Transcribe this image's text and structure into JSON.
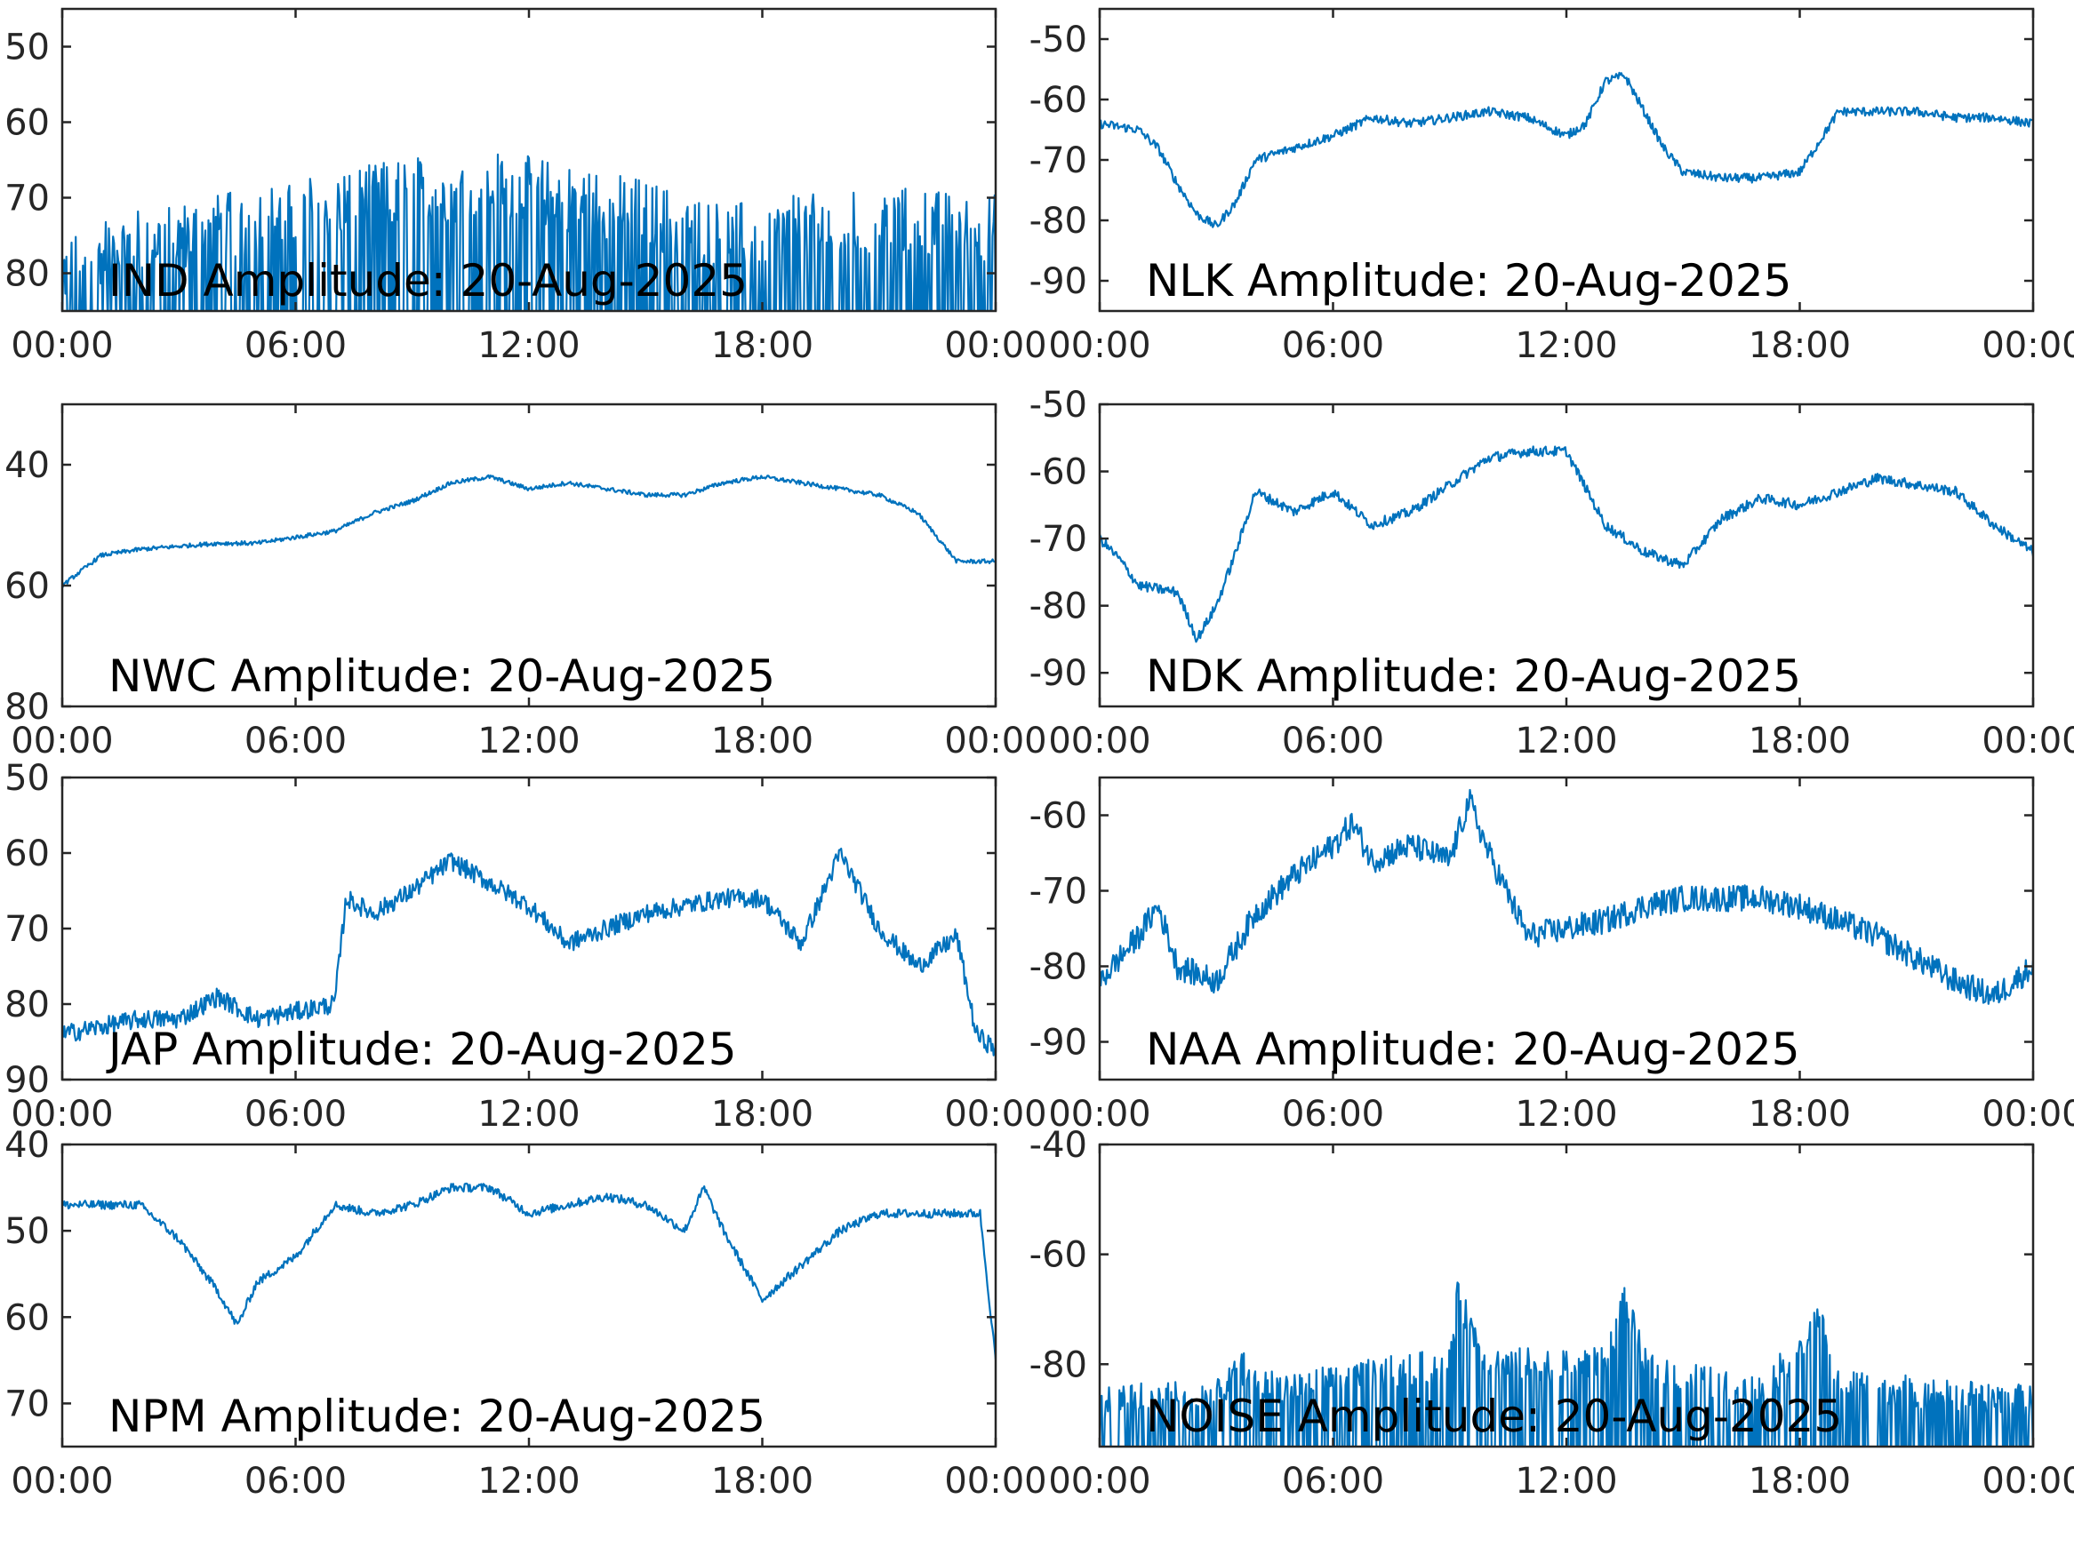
{
  "style": {
    "line_color": "#0072BD",
    "axis_color": "#262626",
    "background": "#ffffff"
  },
  "chart_data": [
    {
      "type": "line",
      "title": "IND Amplitude: 20-Aug-2025",
      "xticks": [
        "00:00",
        "06:00",
        "12:00",
        "18:00",
        "00:00"
      ],
      "xlim": [
        0,
        24
      ],
      "yticks": [
        "50",
        "60",
        "70",
        "80"
      ],
      "ytick_values": [
        -50,
        -60,
        -70,
        -80
      ],
      "ylim": [
        -85,
        -45
      ],
      "series": [
        {
          "x": [
            0,
            1,
            2,
            3,
            4,
            5,
            6,
            7,
            8,
            9,
            10,
            11,
            12,
            13,
            14,
            15,
            16,
            17,
            18,
            19,
            20,
            21,
            22,
            23,
            24
          ],
          "y": [
            -80,
            -77,
            -76,
            -75,
            -74,
            -73,
            -72,
            -71,
            -70,
            -69,
            -69,
            -68,
            -69,
            -70,
            -71,
            -72,
            -74,
            -75,
            -75,
            -74,
            -74,
            -73,
            -73,
            -74,
            -74
          ],
          "noise": 9,
          "floor": true
        }
      ]
    },
    {
      "type": "line",
      "title": "NLK Amplitude: 20-Aug-2025",
      "xticks": [
        "00:00",
        "06:00",
        "12:00",
        "18:00",
        "00:00"
      ],
      "xlim": [
        0,
        24
      ],
      "yticks": [
        "-50",
        "-60",
        "-70",
        "-80",
        "-90"
      ],
      "ytick_values": [
        -50,
        -60,
        -70,
        -80,
        -90
      ],
      "ylim": [
        -95,
        -45
      ],
      "series": [
        {
          "x": [
            0,
            1,
            1.5,
            2,
            2.5,
            3,
            3.5,
            4,
            5,
            6,
            7,
            8,
            9,
            10,
            11,
            12,
            12.5,
            13,
            13.5,
            14,
            14.5,
            15,
            16,
            17,
            18,
            19,
            20,
            21,
            22,
            23,
            24
          ],
          "y": [
            -64,
            -65,
            -68,
            -74,
            -79,
            -81,
            -77,
            -70,
            -68,
            -66,
            -63,
            -64,
            -63,
            -62,
            -63,
            -66,
            -64,
            -57,
            -56,
            -62,
            -68,
            -72,
            -73,
            -73,
            -72,
            -62,
            -62,
            -62,
            -63,
            -63,
            -64
          ],
          "noise": 1.5
        }
      ]
    },
    {
      "type": "line",
      "title": "NWC Amplitude: 20-Aug-2025",
      "xticks": [
        "00:00",
        "06:00",
        "12:00",
        "18:00",
        "00:00"
      ],
      "xlim": [
        0,
        24
      ],
      "yticks": [
        "40",
        "60",
        "80"
      ],
      "ytick_values": [
        -40,
        -60,
        -80
      ],
      "ylim": [
        -80,
        -30
      ],
      "series": [
        {
          "x": [
            0,
            1,
            2,
            3,
            4,
            5,
            6,
            7,
            8,
            9,
            10,
            11,
            12,
            13,
            14,
            15,
            16,
            17,
            18,
            19,
            20,
            21,
            22,
            23,
            24
          ],
          "y": [
            -60,
            -55,
            -54,
            -53.5,
            -53,
            -53,
            -52,
            -51,
            -48,
            -46,
            -43,
            -42,
            -44,
            -43,
            -44,
            -45,
            -45,
            -43,
            -42,
            -43,
            -44,
            -45,
            -48,
            -56,
            -56
          ],
          "noise": 0.7
        }
      ]
    },
    {
      "type": "line",
      "title": "NDK Amplitude: 20-Aug-2025",
      "xticks": [
        "00:00",
        "06:00",
        "12:00",
        "18:00",
        "00:00"
      ],
      "xlim": [
        0,
        24
      ],
      "yticks": [
        "-50",
        "-60",
        "-70",
        "-80",
        "-90"
      ],
      "ytick_values": [
        -50,
        -60,
        -70,
        -80,
        -90
      ],
      "ylim": [
        -95,
        -50
      ],
      "series": [
        {
          "x": [
            0,
            0.5,
            1,
            2,
            2.5,
            3,
            3.5,
            4,
            5,
            6,
            7,
            8,
            9,
            10,
            11,
            12,
            13,
            14,
            15,
            16,
            17,
            18,
            19,
            20,
            21,
            22,
            23,
            24
          ],
          "y": [
            -70,
            -73,
            -77,
            -78,
            -85,
            -80,
            -72,
            -63,
            -66,
            -63,
            -68,
            -66,
            -62,
            -58,
            -57,
            -57,
            -68,
            -72,
            -74,
            -67,
            -64,
            -65,
            -63,
            -61,
            -62,
            -63,
            -68,
            -72
          ],
          "noise": 1.5
        }
      ]
    },
    {
      "type": "line",
      "title": "JAP Amplitude: 20-Aug-2025",
      "xticks": [
        "00:00",
        "06:00",
        "12:00",
        "18:00",
        "00:00"
      ],
      "xlim": [
        0,
        24
      ],
      "yticks": [
        "50",
        "60",
        "70",
        "80",
        "90"
      ],
      "ytick_values": [
        -50,
        -60,
        -70,
        -80,
        -90
      ],
      "ylim": [
        -90,
        -50
      ],
      "series": [
        {
          "x": [
            0,
            1,
            2,
            3,
            4,
            5,
            6,
            7,
            7.3,
            8,
            9,
            10,
            11,
            12,
            13,
            14,
            15,
            16,
            17,
            18,
            19,
            20,
            21,
            22,
            23,
            23.5,
            24
          ],
          "y": [
            -84,
            -83,
            -82,
            -82,
            -79,
            -82,
            -81,
            -80,
            -66,
            -68,
            -65,
            -61,
            -64,
            -67,
            -72,
            -70,
            -68,
            -67,
            -66,
            -66,
            -72,
            -60,
            -70,
            -75,
            -71,
            -84,
            -86
          ],
          "noise": 2.5
        }
      ]
    },
    {
      "type": "line",
      "title": "NAA Amplitude: 20-Aug-2025",
      "xticks": [
        "00:00",
        "06:00",
        "12:00",
        "18:00",
        "00:00"
      ],
      "xlim": [
        0,
        24
      ],
      "yticks": [
        "-60",
        "-70",
        "-80",
        "-90"
      ],
      "ytick_values": [
        -60,
        -70,
        -80,
        -90
      ],
      "ylim": [
        -95,
        -55
      ],
      "series": [
        {
          "x": [
            0,
            1,
            1.5,
            2,
            3,
            4,
            5,
            6,
            6.5,
            7,
            8,
            9,
            9.5,
            10,
            11,
            12,
            13,
            14,
            15,
            16,
            17,
            18,
            19,
            20,
            21,
            22,
            23,
            24
          ],
          "y": [
            -82,
            -76,
            -72,
            -80,
            -82,
            -73,
            -68,
            -64,
            -61,
            -66,
            -64,
            -66,
            -58,
            -65,
            -76,
            -75,
            -74,
            -72,
            -71,
            -71,
            -71,
            -72,
            -74,
            -76,
            -79,
            -82,
            -84,
            -80
          ],
          "noise": 3.5
        }
      ]
    },
    {
      "type": "line",
      "title": "NPM Amplitude: 20-Aug-2025",
      "xticks": [
        "00:00",
        "06:00",
        "12:00",
        "18:00",
        "00:00"
      ],
      "xlim": [
        0,
        24
      ],
      "yticks": [
        "40",
        "50",
        "60",
        "70"
      ],
      "ytick_values": [
        -40,
        -50,
        -60,
        -70
      ],
      "ylim": [
        -75,
        -40
      ],
      "series": [
        {
          "x": [
            0,
            1,
            2,
            3,
            4,
            4.5,
            5,
            6,
            7,
            8,
            9,
            10,
            11,
            12,
            13,
            14,
            15,
            16,
            16.5,
            17,
            18,
            19,
            20,
            21,
            22,
            23,
            23.6,
            24
          ],
          "y": [
            -47,
            -47,
            -47,
            -51,
            -57,
            -61,
            -56,
            -53,
            -47,
            -48,
            -47,
            -45,
            -45,
            -48,
            -47,
            -46,
            -47,
            -50,
            -45,
            -50,
            -58,
            -54,
            -50,
            -48,
            -48,
            -48,
            -48,
            -65
          ],
          "noise": 1.0
        }
      ]
    },
    {
      "type": "line",
      "title": "NOISE Amplitude: 20-Aug-2025",
      "xticks": [
        "00:00",
        "06:00",
        "12:00",
        "18:00",
        "00:00"
      ],
      "xlim": [
        0,
        24
      ],
      "yticks": [
        "-40",
        "-60",
        "-80"
      ],
      "ytick_values": [
        -40,
        -60,
        -80
      ],
      "ylim": [
        -95,
        -40
      ],
      "series": [
        {
          "x": [
            0,
            1,
            2,
            3,
            3.8,
            4,
            5,
            6,
            7,
            8,
            9,
            9.2,
            10,
            11,
            12,
            13,
            13.5,
            14,
            15,
            16,
            17,
            18,
            18.5,
            19,
            20,
            21,
            22,
            23,
            24
          ],
          "y": [
            -87,
            -86,
            -86,
            -86,
            -80,
            -84,
            -84,
            -83,
            -82,
            -81,
            -80,
            -68,
            -80,
            -80,
            -80,
            -80,
            -68,
            -80,
            -82,
            -84,
            -85,
            -77,
            -72,
            -84,
            -84,
            -85,
            -86,
            -86,
            -87
          ],
          "noise": 6,
          "floor": true
        }
      ]
    }
  ]
}
